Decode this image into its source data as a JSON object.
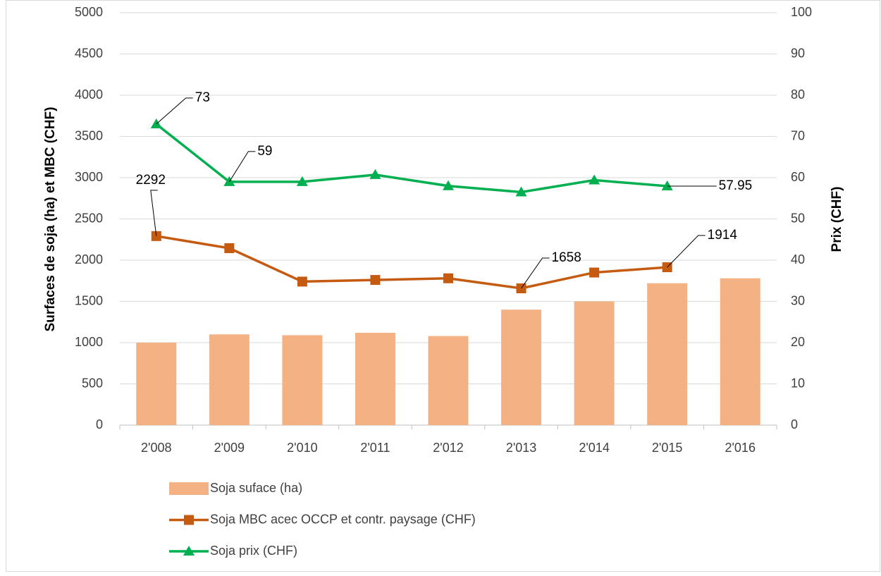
{
  "chart_data": {
    "type": "bar_line",
    "categories": [
      "2'008",
      "2'009",
      "2'010",
      "2'011",
      "2'012",
      "2'013",
      "2'014",
      "2'015",
      "2'016"
    ],
    "series": [
      {
        "name": "Soja suface (ha)",
        "type": "bar",
        "color": "#f4b183",
        "axis": "y",
        "values": [
          1000,
          1100,
          1090,
          1120,
          1080,
          1400,
          1500,
          1720,
          1780
        ]
      },
      {
        "name": "Soja MBC acec OCCP et contr. paysage (CHF)",
        "type": "line",
        "marker": "square",
        "color": "#c55a11",
        "axis": "y",
        "values": [
          2292,
          2145,
          1740,
          1760,
          1780,
          1658,
          1850,
          1914,
          null
        ],
        "value_labels": [
          "2292",
          null,
          null,
          null,
          null,
          "1658",
          null,
          "1914",
          null
        ]
      },
      {
        "name": "Soja prix (CHF)",
        "type": "line",
        "marker": "triangle",
        "color": "#00b050",
        "axis": "y2",
        "values": [
          73,
          59,
          59,
          60.7,
          58,
          56.5,
          59.4,
          57.95,
          null
        ],
        "value_labels": [
          "73",
          "59",
          null,
          null,
          null,
          null,
          null,
          "57.95",
          null
        ]
      }
    ],
    "ylabel": "Surfaces de soja (ha) et MBC (CHF)",
    "y2label": "Prix (CHF)",
    "ylim": [
      0,
      5000
    ],
    "yticks": [
      0,
      500,
      1000,
      1500,
      2000,
      2500,
      3000,
      3500,
      4000,
      4500,
      5000
    ],
    "y2lim": [
      0,
      100
    ],
    "y2ticks": [
      0,
      10,
      20,
      30,
      40,
      50,
      60,
      70,
      80,
      90,
      100
    ],
    "grid": true,
    "legend": "bottom"
  }
}
